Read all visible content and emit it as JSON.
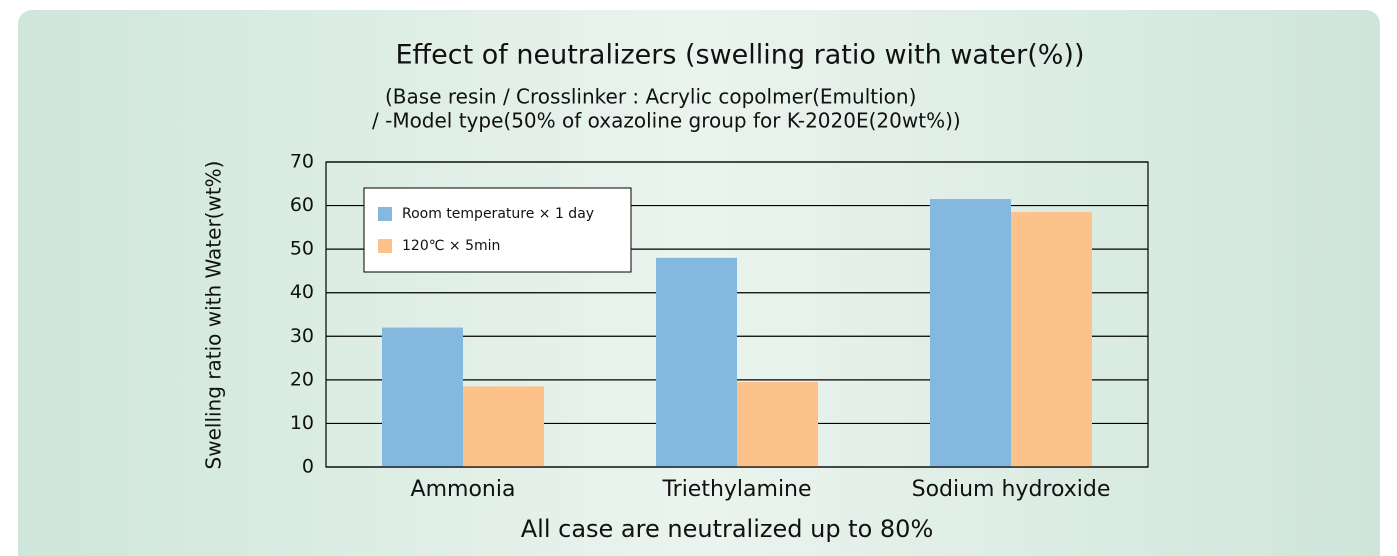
{
  "chart_data": {
    "type": "bar",
    "title": "Effect of neutralizers (swelling ratio with water(%))",
    "subtitle": [
      "(Base resin / Crosslinker : Acrylic copolmer(Emultion)",
      "/ -Model type(50% of oxazoline group for K-2020E(20wt%))"
    ],
    "ylabel": "Swelling ratio with Water(wt%)",
    "xlabel": "All case are neutralized up to 80%",
    "categories": [
      "Ammonia",
      "Triethylamine",
      "Sodium hydroxide"
    ],
    "series": [
      {
        "name": "Room temperature × 1 day",
        "color": "#85b8de",
        "values": [
          32,
          48,
          61.5
        ]
      },
      {
        "name": "120℃ × 5min",
        "color": "#fdc18a",
        "values": [
          18.5,
          19.5,
          58.5
        ]
      }
    ],
    "ylim": [
      0,
      70
    ],
    "yticks": [
      0,
      10,
      20,
      30,
      40,
      50,
      60,
      70
    ],
    "grid": true,
    "legend": "upper left"
  }
}
